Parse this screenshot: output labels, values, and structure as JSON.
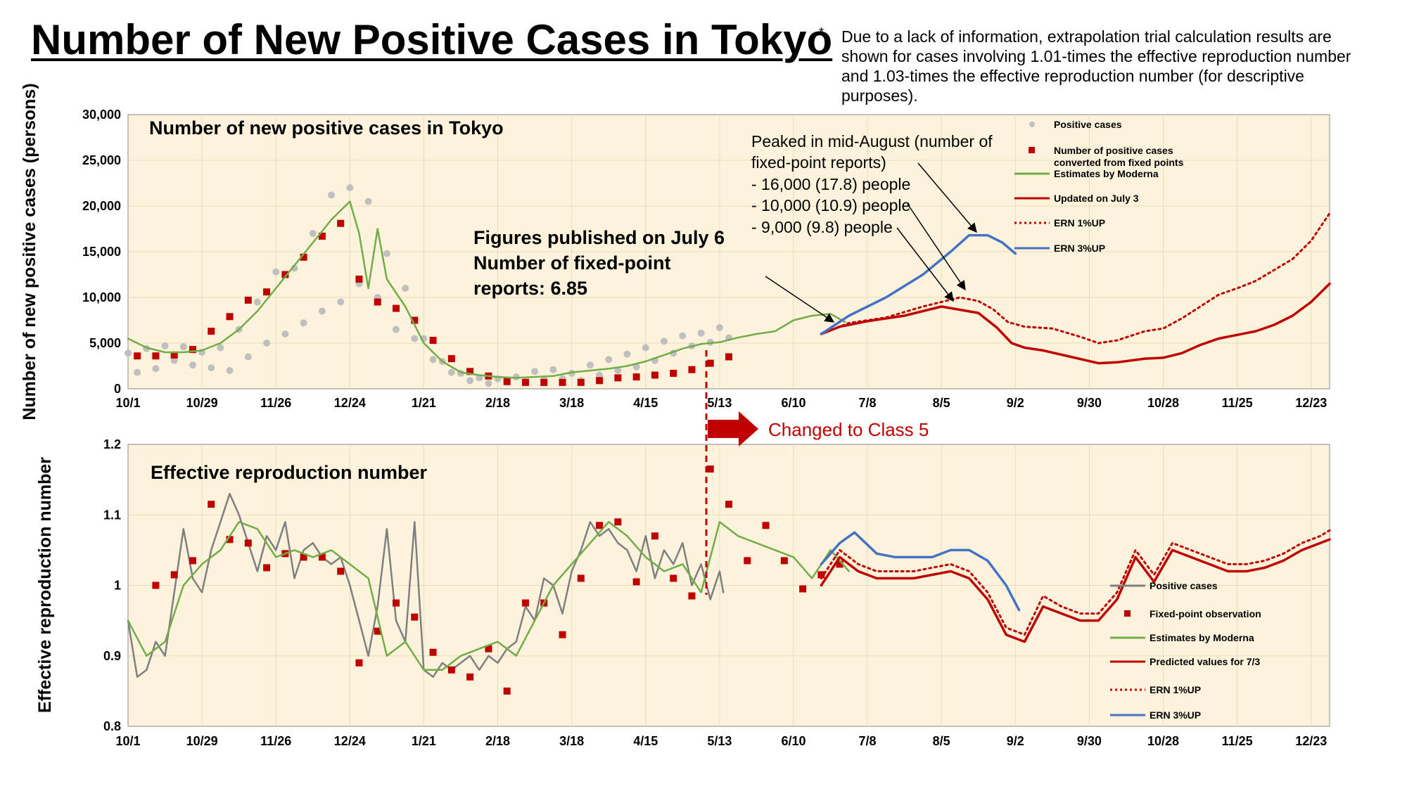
{
  "page": {
    "title": "Number of New Positive Cases in Tokyo",
    "asterisk": "*",
    "note": "Due to a lack of information, extrapolation trial calculation results are shown for cases involving 1.01-times the effective reproduction number and 1.03-times the effective reproduction number (for descriptive purposes)."
  },
  "colors": {
    "plot_bg": "#fdf3dc",
    "grid": "#e6dcc0",
    "gray_points": "#bfbfbf",
    "red": "#c00000",
    "green": "#70ad47",
    "blue": "#4472c4",
    "dark_gray": "#7f7f7f"
  },
  "annotations": {
    "class5": "Changed to Class 5",
    "figures_line1": "Figures published on July 6",
    "figures_line2": "Number of fixed-point",
    "figures_line3": "reports: 6.85",
    "peak_line1": "Peaked in mid-August (number of",
    "peak_line2": "fixed-point reports)",
    "peak_line3": "- 16,000 (17.8) people",
    "peak_line4": "- 10,000 (10.9) people",
    "peak_line5": "- 9,000 (9.8) people"
  },
  "chart_data": [
    {
      "type": "line",
      "title": "Number of new positive cases in Tokyo",
      "ylabel": "Number of new positive cases (persons)",
      "ylim": [
        0,
        30000
      ],
      "yticks": [
        0,
        5000,
        10000,
        15000,
        20000,
        25000,
        30000
      ],
      "yticklabels": [
        "0",
        "5,000",
        "10,000",
        "15,000",
        "20,000",
        "25,000",
        "30,000"
      ],
      "xticklabels": [
        "10/1",
        "10/29",
        "11/26",
        "12/24",
        "1/21",
        "2/18",
        "3/18",
        "4/15",
        "5/13",
        "6/10",
        "7/8",
        "8/5",
        "9/2",
        "9/30",
        "10/28",
        "11/25",
        "12/23"
      ],
      "x_unit": "weeks since 10/1",
      "xlim": [
        0,
        65
      ],
      "legend_position": "top-right",
      "legend": [
        "Positive cases",
        "Number of positive cases converted from fixed points",
        "Estimates by Moderna",
        "Updated on July 3",
        "ERN 1%UP",
        "ERN 3%UP"
      ],
      "series": [
        {
          "name": "Positive cases",
          "style": "points",
          "x": [
            0,
            0.5,
            1,
            1.5,
            2,
            2.5,
            3,
            3.5,
            4,
            4.5,
            5,
            5.5,
            6,
            6.5,
            7,
            7.5,
            8,
            8.5,
            9,
            9.5,
            10,
            10.5,
            11,
            11.5,
            12,
            12.5,
            13,
            13.5,
            14,
            14.5,
            15,
            15.5,
            16,
            16.5,
            17,
            17.5,
            18,
            18.5,
            19,
            19.5,
            20,
            20.5,
            21,
            21.5,
            22,
            22.5,
            23,
            23.5,
            24,
            24.5,
            25,
            25.5,
            26,
            26.5,
            27,
            27.5,
            28,
            28.5,
            29,
            29.5,
            30,
            30.5,
            31,
            31.5,
            32,
            32.5
          ],
          "values": [
            3900,
            1800,
            4400,
            2200,
            4700,
            3100,
            4600,
            2600,
            4000,
            2300,
            4500,
            2000,
            6500,
            3500,
            9500,
            5000,
            12800,
            6000,
            13200,
            7200,
            17000,
            8500,
            21200,
            9500,
            22000,
            11500,
            20500,
            10000,
            14800,
            6500,
            11000,
            5500,
            5500,
            3200,
            3000,
            1800,
            1700,
            900,
            1200,
            600,
            1100,
            700,
            1300,
            800,
            1900,
            1000,
            2100,
            1100,
            1700,
            900,
            2600,
            1500,
            3200,
            2000,
            3800,
            2400,
            4500,
            3100,
            5200,
            3900,
            5800,
            4700,
            6100,
            5100,
            6700,
            5600
          ]
        },
        {
          "name": "Number of positive cases converted from fixed points",
          "style": "markers",
          "x": [
            0.5,
            1.5,
            2.5,
            3.5,
            4.5,
            5.5,
            6.5,
            7.5,
            8.5,
            9.5,
            10.5,
            11.5,
            12.5,
            13.5,
            14.5,
            15.5,
            16.5,
            17.5,
            18.5,
            19.5,
            20.5,
            21.5,
            22.5,
            23.5,
            24.5,
            25.5,
            26.5,
            27.5,
            28.5,
            29.5,
            30.5,
            31.5,
            32.5
          ],
          "values": [
            3600,
            3600,
            3700,
            4300,
            6300,
            7900,
            9700,
            10600,
            12500,
            14400,
            16700,
            18100,
            12000,
            9500,
            8800,
            7500,
            5300,
            3300,
            1900,
            1400,
            800,
            700,
            700,
            700,
            700,
            900,
            1200,
            1300,
            1500,
            1700,
            2100,
            2800,
            3500
          ]
        },
        {
          "name": "Estimates by Moderna",
          "style": "solid",
          "x": [
            0,
            1,
            2,
            3,
            4,
            5,
            6,
            7,
            8,
            9,
            10,
            11,
            12,
            12.5,
            13,
            13.5,
            14,
            14.5,
            15,
            15.5,
            16,
            17,
            18,
            19,
            20,
            21,
            22,
            23,
            24,
            25,
            26,
            27,
            28,
            29,
            30,
            31,
            32,
            33,
            34,
            35,
            36,
            37,
            38,
            38.8
          ],
          "values": [
            5500,
            4500,
            4000,
            4000,
            4200,
            5000,
            6500,
            8500,
            11000,
            13500,
            16000,
            18500,
            20500,
            17000,
            11000,
            17500,
            12000,
            10500,
            9000,
            7000,
            5000,
            3000,
            1800,
            1500,
            1300,
            1200,
            1300,
            1400,
            1800,
            2000,
            2200,
            2500,
            3000,
            3700,
            4400,
            4900,
            5100,
            5600,
            6000,
            6300,
            7500,
            8000,
            8200,
            7300
          ]
        },
        {
          "name": "Updated on July 3",
          "style": "solid",
          "x": [
            37.5,
            38.5,
            40,
            42,
            44,
            46,
            47,
            47.8,
            48.5,
            49.5,
            51,
            52.5,
            53.5,
            55,
            56,
            57,
            58,
            59,
            60,
            61,
            62,
            63,
            64,
            65
          ],
          "values": [
            6000,
            6800,
            7400,
            8000,
            9000,
            8300,
            6700,
            5000,
            4500,
            4200,
            3500,
            2800,
            2900,
            3300,
            3400,
            3900,
            4800,
            5500,
            5900,
            6300,
            7000,
            8000,
            9500,
            11500
          ]
        },
        {
          "name": "ERN 1%UP",
          "style": "dotted",
          "x": [
            37.5,
            39,
            41,
            43,
            45,
            46,
            46.8,
            47.6,
            48.5,
            50,
            51.5,
            52.5,
            53.5,
            55,
            56,
            57,
            58,
            59,
            60,
            61,
            62,
            63,
            64,
            65
          ],
          "values": [
            6000,
            7200,
            7800,
            9000,
            10000,
            9600,
            8700,
            7300,
            6800,
            6600,
            5700,
            5000,
            5300,
            6300,
            6600,
            7700,
            9000,
            10300,
            11000,
            11800,
            13000,
            14200,
            16200,
            19200
          ]
        },
        {
          "name": "ERN 3%UP",
          "style": "solid",
          "x": [
            37.5,
            39,
            41,
            43,
            44.5,
            45.5,
            46.5,
            47.3,
            48
          ],
          "values": [
            6000,
            8000,
            10000,
            12500,
            15000,
            16800,
            16800,
            16000,
            14800
          ]
        }
      ]
    },
    {
      "type": "line",
      "title": "Effective reproduction number",
      "ylabel": "Effective reproduction number",
      "ylim": [
        0.8,
        1.2
      ],
      "yticks": [
        0.8,
        0.9,
        1.0,
        1.1,
        1.2
      ],
      "yticklabels": [
        "0.8",
        "0.9",
        "1",
        "1.1",
        "1.2"
      ],
      "xticklabels": [
        "10/1",
        "10/29",
        "11/26",
        "12/24",
        "1/21",
        "2/18",
        "3/18",
        "4/15",
        "5/13",
        "6/10",
        "7/8",
        "8/5",
        "9/2",
        "9/30",
        "10/28",
        "11/25",
        "12/23"
      ],
      "x_unit": "weeks since 10/1",
      "xlim": [
        0,
        65
      ],
      "legend_position": "bottom-right",
      "legend": [
        "Positive cases",
        "Fixed-point observation",
        "Estimates by Moderna",
        "Predicted values for 7/3",
        "ERN 1%UP",
        "ERN 3%UP"
      ],
      "series": [
        {
          "name": "Positive cases",
          "style": "solid",
          "x": [
            0,
            0.5,
            1,
            1.5,
            2,
            2.5,
            3,
            3.5,
            4,
            4.5,
            5,
            5.5,
            6,
            6.5,
            7,
            7.5,
            8,
            8.5,
            9,
            9.5,
            10,
            10.5,
            11,
            11.5,
            12,
            12.5,
            13,
            13.5,
            14,
            14.5,
            15,
            15.5,
            16,
            16.5,
            17,
            17.5,
            18,
            18.5,
            19,
            19.5,
            20,
            20.5,
            21,
            21.5,
            22,
            22.5,
            23,
            23.5,
            24,
            24.5,
            25,
            25.5,
            26,
            26.5,
            27,
            27.5,
            28,
            28.5,
            29,
            29.5,
            30,
            30.5,
            31,
            31.5,
            32,
            32.2
          ],
          "values": [
            0.95,
            0.87,
            0.88,
            0.92,
            0.9,
            0.99,
            1.08,
            1.01,
            0.99,
            1.05,
            1.09,
            1.13,
            1.1,
            1.06,
            1.02,
            1.07,
            1.05,
            1.09,
            1.01,
            1.05,
            1.06,
            1.04,
            1.03,
            1.04,
            1.0,
            0.95,
            0.9,
            0.97,
            1.08,
            0.95,
            0.92,
            1.09,
            0.88,
            0.87,
            0.89,
            0.88,
            0.89,
            0.9,
            0.88,
            0.9,
            0.89,
            0.91,
            0.92,
            0.97,
            0.95,
            1.01,
            1.0,
            0.96,
            1.02,
            1.05,
            1.09,
            1.07,
            1.08,
            1.06,
            1.05,
            1.02,
            1.07,
            1.01,
            1.05,
            1.03,
            1.06,
            1.0,
            1.03,
            0.98,
            1.02,
            0.99
          ]
        },
        {
          "name": "Fixed-point observation",
          "style": "markers",
          "x": [
            1.5,
            2.5,
            3.5,
            4.5,
            5.5,
            6.5,
            7.5,
            8.5,
            9.5,
            10.5,
            11.5,
            12.5,
            13.5,
            14.5,
            15.5,
            16.5,
            17.5,
            18.5,
            19.5,
            20.5,
            21.5,
            22.5,
            23.5,
            24.5,
            25.5,
            26.5,
            27.5,
            28.5,
            29.5,
            30.5,
            31.5,
            32.5,
            33.5,
            34.5,
            35.5,
            36.5,
            37.5,
            38.5
          ],
          "values": [
            1.0,
            1.015,
            1.035,
            1.115,
            1.065,
            1.06,
            1.025,
            1.045,
            1.04,
            1.04,
            1.02,
            0.89,
            0.935,
            0.975,
            0.955,
            0.905,
            0.88,
            0.87,
            0.91,
            0.85,
            0.975,
            0.975,
            0.93,
            1.01,
            1.085,
            1.09,
            1.005,
            1.07,
            1.01,
            0.985,
            1.165,
            1.115,
            1.035,
            1.085,
            1.035,
            0.995,
            1.015,
            1.03
          ]
        },
        {
          "name": "Estimates by Moderna",
          "style": "solid",
          "x": [
            0,
            1,
            2,
            3,
            4,
            5,
            6,
            7,
            8,
            9,
            10,
            11,
            12,
            13,
            14,
            15,
            16,
            17,
            18,
            19,
            20,
            21,
            22,
            23,
            24,
            25,
            26,
            27,
            28,
            29,
            30,
            31,
            32,
            33,
            34,
            35,
            36,
            37,
            38,
            39
          ],
          "values": [
            0.95,
            0.9,
            0.92,
            1.0,
            1.03,
            1.05,
            1.09,
            1.08,
            1.04,
            1.05,
            1.04,
            1.05,
            1.03,
            1.01,
            0.9,
            0.92,
            0.88,
            0.88,
            0.9,
            0.91,
            0.92,
            0.9,
            0.95,
            1.0,
            1.03,
            1.06,
            1.09,
            1.07,
            1.04,
            1.02,
            1.03,
            0.99,
            1.09,
            1.07,
            1.06,
            1.05,
            1.04,
            1.01,
            1.05,
            1.02
          ]
        },
        {
          "name": "Predicted values for 7/3",
          "style": "solid",
          "x": [
            37.5,
            38.5,
            39.5,
            40.5,
            41.5,
            42.5,
            43.5,
            44.5,
            45.5,
            46.5,
            47.5,
            48.5,
            49.5,
            50.5,
            51.5,
            52.5,
            53.5,
            54.5,
            55.5,
            56.5,
            57.5,
            58.5,
            59.5,
            60.5,
            61.5,
            62.5,
            63.5,
            64.5,
            65
          ],
          "values": [
            1.0,
            1.04,
            1.02,
            1.01,
            1.01,
            1.01,
            1.015,
            1.02,
            1.01,
            0.98,
            0.93,
            0.92,
            0.97,
            0.96,
            0.95,
            0.95,
            0.98,
            1.04,
            1.005,
            1.05,
            1.04,
            1.03,
            1.02,
            1.02,
            1.025,
            1.035,
            1.05,
            1.06,
            1.065
          ]
        },
        {
          "name": "ERN 1%UP",
          "style": "dotted",
          "x": [
            37.5,
            38.5,
            39.5,
            40.5,
            41.5,
            42.5,
            43.5,
            44.5,
            45.5,
            46.5,
            47.5,
            48.5,
            49.5,
            50.5,
            51.5,
            52.5,
            53.5,
            54.5,
            55.5,
            56.5,
            57.5,
            58.5,
            59.5,
            60.5,
            61.5,
            62.5,
            63.5,
            64.5,
            65
          ],
          "values": [
            1.01,
            1.05,
            1.03,
            1.02,
            1.02,
            1.02,
            1.025,
            1.03,
            1.02,
            0.99,
            0.94,
            0.93,
            0.985,
            0.97,
            0.96,
            0.96,
            0.99,
            1.05,
            1.015,
            1.06,
            1.05,
            1.04,
            1.03,
            1.03,
            1.035,
            1.045,
            1.06,
            1.07,
            1.078
          ]
        },
        {
          "name": "ERN 3%UP",
          "style": "solid",
          "x": [
            37.5,
            38.5,
            39.3,
            40.5,
            41.5,
            42.5,
            43.5,
            44.5,
            45.5,
            46.5,
            47.5,
            48.2
          ],
          "values": [
            1.03,
            1.06,
            1.075,
            1.045,
            1.04,
            1.04,
            1.04,
            1.05,
            1.05,
            1.035,
            1.0,
            0.965
          ]
        }
      ]
    }
  ]
}
